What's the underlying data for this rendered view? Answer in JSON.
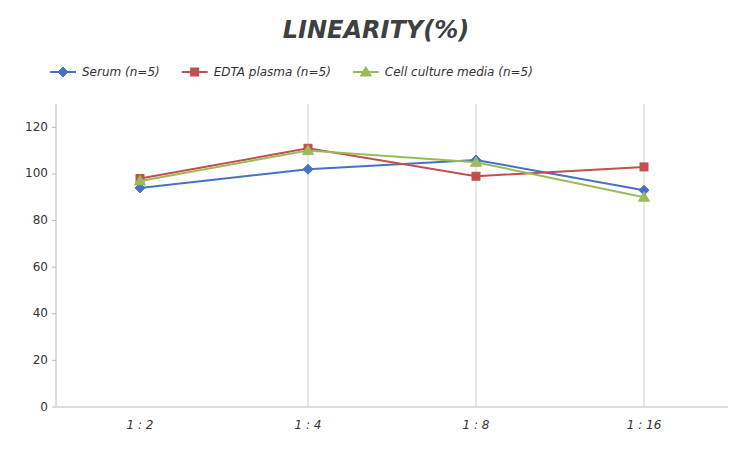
{
  "chart_data": {
    "type": "line",
    "title": "LINEARITY(%)",
    "categories": [
      "1 : 2",
      "1 : 4",
      "1 : 8",
      "1 : 16"
    ],
    "series": [
      {
        "name": "Serum (n=5)",
        "color": "#4472C4",
        "marker": "diamond",
        "values": [
          94,
          102,
          106,
          93
        ]
      },
      {
        "name": "EDTA plasma (n=5)",
        "color": "#C0504D",
        "marker": "square",
        "values": [
          98,
          111,
          99,
          103
        ]
      },
      {
        "name": "Cell culture media (n=5)",
        "color": "#9BBB59",
        "marker": "triangle",
        "values": [
          97,
          110,
          105,
          90
        ]
      }
    ],
    "ylim": [
      0,
      130
    ],
    "yticks": [
      0,
      20,
      40,
      60,
      80,
      100,
      120
    ],
    "grid": "x",
    "legend": "top"
  }
}
